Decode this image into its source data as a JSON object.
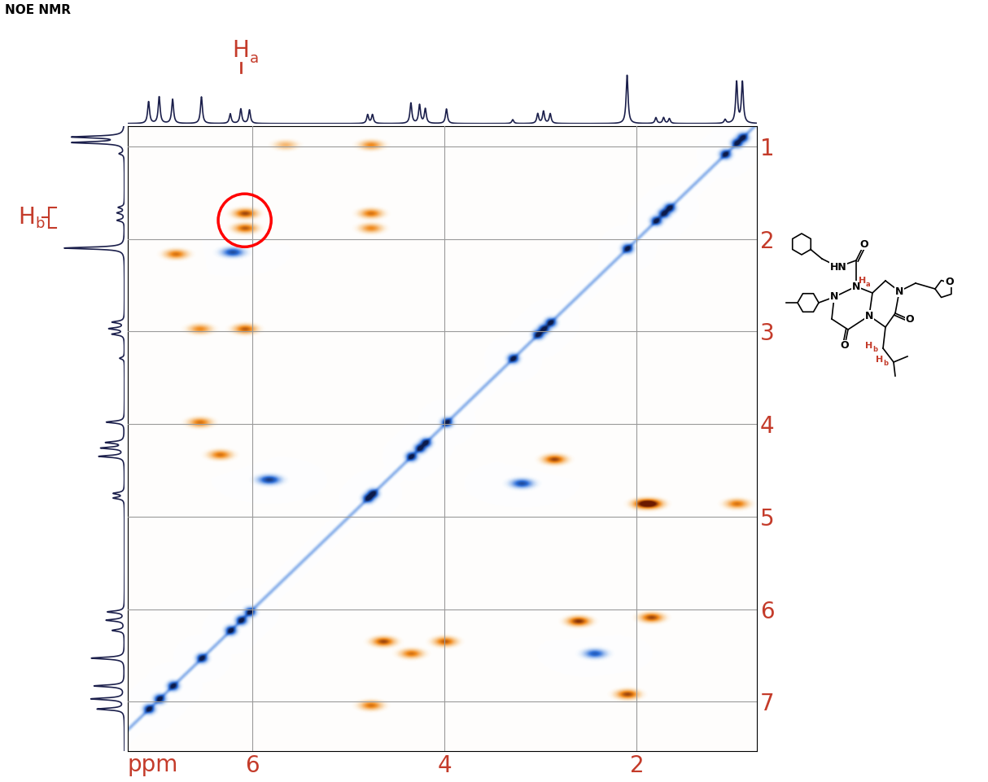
{
  "chart_data": {
    "type": "nmr2d",
    "title": "NOE NMR",
    "x_label": "ppm",
    "xlim": [
      7.3,
      0.75
    ],
    "ylim": [
      7.53,
      0.78
    ],
    "xticks": [
      6,
      4,
      2
    ],
    "yticks": [
      1,
      2,
      3,
      4,
      5,
      6,
      7
    ],
    "grid": true,
    "projection": {
      "ppm": [
        7.08,
        6.97,
        6.83,
        6.53,
        6.23,
        6.12,
        6.03,
        4.8,
        4.75,
        4.35,
        4.26,
        4.2,
        3.98,
        3.29,
        3.03,
        2.97,
        2.9,
        2.1,
        1.8,
        1.72,
        1.66,
        1.08,
        0.96,
        0.9
      ],
      "height": [
        0.45,
        0.55,
        0.5,
        0.55,
        0.2,
        0.3,
        0.28,
        0.18,
        0.18,
        0.42,
        0.38,
        0.3,
        0.3,
        0.08,
        0.2,
        0.25,
        0.2,
        1.0,
        0.12,
        0.12,
        0.1,
        0.08,
        0.85,
        0.85
      ]
    },
    "cross_peaks": [
      {
        "x": 6.08,
        "y": 1.72,
        "intensity": 0.8
      },
      {
        "x": 6.08,
        "y": 1.88,
        "intensity": 0.7
      },
      {
        "x": 4.77,
        "y": 1.72,
        "intensity": 0.6
      },
      {
        "x": 4.77,
        "y": 1.88,
        "intensity": 0.5
      },
      {
        "x": 5.66,
        "y": 0.98,
        "intensity": 0.3
      },
      {
        "x": 4.77,
        "y": 0.98,
        "intensity": 0.5
      },
      {
        "x": 6.8,
        "y": 2.16,
        "intensity": 0.6
      },
      {
        "x": 6.21,
        "y": 2.14,
        "intensity": -0.7
      },
      {
        "x": 6.55,
        "y": 2.97,
        "intensity": 0.5
      },
      {
        "x": 6.08,
        "y": 2.97,
        "intensity": 0.7
      },
      {
        "x": 6.55,
        "y": 3.98,
        "intensity": 0.6
      },
      {
        "x": 6.34,
        "y": 4.33,
        "intensity": 0.6
      },
      {
        "x": 2.86,
        "y": 4.38,
        "intensity": 0.8
      },
      {
        "x": 3.2,
        "y": 4.64,
        "intensity": -0.7
      },
      {
        "x": 5.83,
        "y": 4.6,
        "intensity": -0.8
      },
      {
        "x": 1.93,
        "y": 4.86,
        "intensity": 0.9
      },
      {
        "x": 1.85,
        "y": 4.86,
        "intensity": 0.9
      },
      {
        "x": 0.96,
        "y": 4.86,
        "intensity": 0.6
      },
      {
        "x": 4.64,
        "y": 6.35,
        "intensity": 0.8
      },
      {
        "x": 4.0,
        "y": 6.35,
        "intensity": 0.7
      },
      {
        "x": 2.61,
        "y": 6.13,
        "intensity": 0.9
      },
      {
        "x": 1.85,
        "y": 6.09,
        "intensity": 0.8
      },
      {
        "x": 2.44,
        "y": 6.48,
        "intensity": -0.6
      },
      {
        "x": 4.35,
        "y": 6.48,
        "intensity": 0.6
      },
      {
        "x": 2.1,
        "y": 6.92,
        "intensity": 0.8
      },
      {
        "x": 4.77,
        "y": 7.04,
        "intensity": 0.6
      }
    ],
    "highlight": {
      "x": 6.08,
      "y": 1.8
    },
    "peak_labels": [
      {
        "text": "H",
        "subscript": "a",
        "ppm": 6.12
      },
      {
        "text": "H",
        "subscript": "b",
        "ppm_range": [
          1.66,
          1.88
        ]
      }
    ],
    "structure": {
      "atoms": [
        "HN",
        "O",
        "N",
        "N",
        "N",
        "N",
        "O",
        "O",
        "O"
      ],
      "stereo_labels": [
        {
          "text": "H",
          "subscript": "a"
        },
        {
          "text": "H",
          "subscript": "b"
        },
        {
          "text": "H",
          "subscript": "b"
        }
      ]
    }
  }
}
